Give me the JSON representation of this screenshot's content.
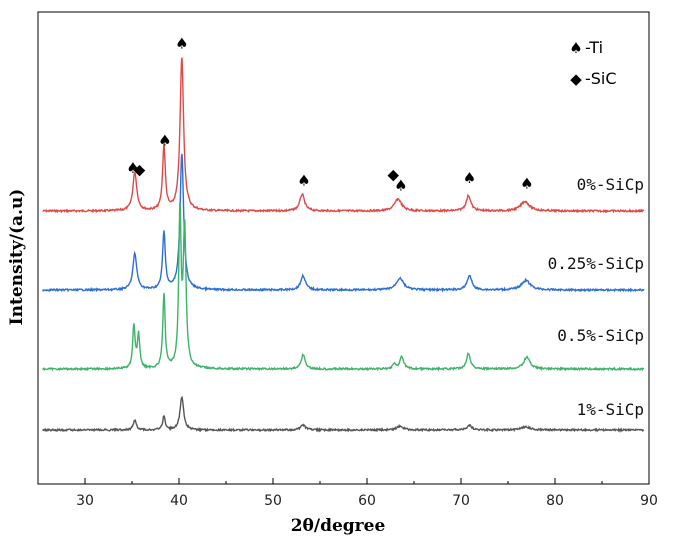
{
  "chart_data": {
    "type": "line",
    "title": "",
    "xlabel": "2θ/degree",
    "ylabel": "Intensity/(a.u)",
    "xlim": [
      25,
      90
    ],
    "x_ticks": [
      30,
      40,
      50,
      60,
      70,
      80,
      90
    ],
    "y_ticks": [],
    "legend": [
      {
        "symbol": "♠",
        "label": "-Ti"
      },
      {
        "symbol": "◆",
        "label": "-SiC"
      }
    ],
    "series": [
      {
        "name": "0%-SiCp",
        "color": "#e04848",
        "offset": 3,
        "peaks": [
          {
            "x": 35.3,
            "h": 0.8,
            "w": 0.5
          },
          {
            "x": 38.4,
            "h": 1.35,
            "w": 0.35
          },
          {
            "x": 40.3,
            "h": 3.2,
            "w": 0.45
          },
          {
            "x": 53.1,
            "h": 0.35,
            "w": 0.6
          },
          {
            "x": 63.3,
            "h": 0.25,
            "w": 0.9
          },
          {
            "x": 70.8,
            "h": 0.32,
            "w": 0.6
          },
          {
            "x": 76.8,
            "h": 0.2,
            "w": 1.1
          }
        ]
      },
      {
        "name": "0.25%-SiCp",
        "color": "#2b6fd6",
        "offset": 2,
        "peaks": [
          {
            "x": 35.3,
            "h": 0.75,
            "w": 0.5
          },
          {
            "x": 38.4,
            "h": 1.2,
            "w": 0.35
          },
          {
            "x": 40.3,
            "h": 2.85,
            "w": 0.45
          },
          {
            "x": 53.2,
            "h": 0.3,
            "w": 0.6
          },
          {
            "x": 63.5,
            "h": 0.25,
            "w": 0.9
          },
          {
            "x": 70.9,
            "h": 0.3,
            "w": 0.6
          },
          {
            "x": 76.9,
            "h": 0.2,
            "w": 1.1
          }
        ]
      },
      {
        "name": "0.5%-SiCp",
        "color": "#3db36a",
        "offset": 1,
        "peaks": [
          {
            "x": 35.2,
            "h": 0.9,
            "w": 0.3
          },
          {
            "x": 35.7,
            "h": 0.7,
            "w": 0.3
          },
          {
            "x": 38.4,
            "h": 1.55,
            "w": 0.3
          },
          {
            "x": 40.1,
            "h": 3.2,
            "w": 0.3
          },
          {
            "x": 40.6,
            "h": 2.9,
            "w": 0.35
          },
          {
            "x": 53.2,
            "h": 0.3,
            "w": 0.5
          },
          {
            "x": 62.9,
            "h": 0.1,
            "w": 0.4
          },
          {
            "x": 63.7,
            "h": 0.25,
            "w": 0.5
          },
          {
            "x": 70.8,
            "h": 0.33,
            "w": 0.5
          },
          {
            "x": 77.0,
            "h": 0.25,
            "w": 0.8
          }
        ]
      },
      {
        "name": "1%-SiCp",
        "color": "#555555",
        "offset": 0,
        "peaks": [
          {
            "x": 35.3,
            "h": 0.2,
            "w": 0.4
          },
          {
            "x": 38.4,
            "h": 0.3,
            "w": 0.3
          },
          {
            "x": 40.3,
            "h": 0.7,
            "w": 0.45
          },
          {
            "x": 53.2,
            "h": 0.1,
            "w": 0.6
          },
          {
            "x": 63.5,
            "h": 0.08,
            "w": 0.8
          },
          {
            "x": 70.9,
            "h": 0.1,
            "w": 0.6
          },
          {
            "x": 76.9,
            "h": 0.06,
            "w": 1.2
          }
        ]
      }
    ],
    "annotations": [
      {
        "symbol": "♠",
        "x": 35.1
      },
      {
        "symbol": "◆",
        "x": 35.8
      },
      {
        "symbol": "♠",
        "x": 38.5
      },
      {
        "symbol": "♠",
        "x": 40.3
      },
      {
        "symbol": "♠",
        "x": 53.3
      },
      {
        "symbol": "◆",
        "x": 62.8
      },
      {
        "symbol": "♠",
        "x": 63.6
      },
      {
        "symbol": "♠",
        "x": 70.9
      },
      {
        "symbol": "♠",
        "x": 77.0
      }
    ]
  }
}
